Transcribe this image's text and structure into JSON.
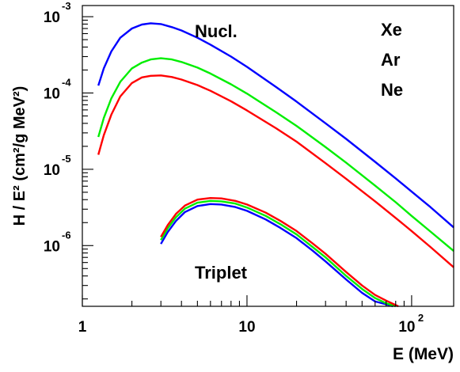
{
  "chart_data": {
    "type": "line",
    "xlabel": "E (MeV)",
    "ylabel": "H / E² (cm²/g MeV²)",
    "x_scale": "log",
    "y_scale": "log",
    "xlim": [
      1,
      180
    ],
    "ylim": [
      1.6e-07,
      0.0014
    ],
    "grid": false,
    "x_ticks": [
      {
        "value": 1,
        "base": "1",
        "exp": ""
      },
      {
        "value": 10,
        "base": "10",
        "exp": ""
      },
      {
        "value": 100,
        "base": "10",
        "exp": "2"
      }
    ],
    "y_ticks": [
      {
        "value": 0.001,
        "base": "10",
        "exp": "-3"
      },
      {
        "value": 0.0001,
        "base": "10",
        "exp": "-4"
      },
      {
        "value": 1e-05,
        "base": "10",
        "exp": "-5"
      },
      {
        "value": 1e-06,
        "base": "10",
        "exp": "-6"
      }
    ],
    "annotations": [
      {
        "text": "Nucl.",
        "near": "upper-center"
      },
      {
        "text": "Triplet",
        "near": "lower-center"
      }
    ],
    "legend": {
      "placement": "top-right",
      "entries": [
        {
          "label": "Xe",
          "color": "#0000ff"
        },
        {
          "label": "Ar",
          "color": "#00ee00"
        },
        {
          "label": "Ne",
          "color": "#ff0000"
        }
      ]
    },
    "series": [
      {
        "group": "Nucl.",
        "color": "#0000ff",
        "x": [
          1.25,
          1.35,
          1.5,
          1.7,
          2.0,
          2.3,
          2.6,
          3.0,
          3.5,
          4.0,
          5.0,
          6.0,
          8.0,
          10,
          15,
          20,
          30,
          40,
          60,
          80,
          100,
          130,
          180
        ],
        "y": [
          0.000125,
          0.00021,
          0.00035,
          0.00053,
          0.0007,
          0.00079,
          0.00082,
          0.0008,
          0.00073,
          0.00066,
          0.00053,
          0.00043,
          0.0003,
          0.00022,
          0.00012,
          7.7e-05,
          4e-05,
          2.5e-05,
          1.25e-05,
          7.6e-06,
          5.1e-06,
          3.2e-06,
          1.73e-06
        ]
      },
      {
        "group": "Nucl.",
        "color": "#00ee00",
        "x": [
          1.25,
          1.35,
          1.5,
          1.7,
          2.0,
          2.3,
          2.6,
          3.0,
          3.5,
          4.0,
          5.0,
          6.0,
          8.0,
          10,
          15,
          20,
          30,
          40,
          60,
          80,
          100,
          130,
          180
        ],
        "y": [
          2.65e-05,
          4.7e-05,
          8.5e-05,
          0.00014,
          0.00021,
          0.00025,
          0.000275,
          0.000285,
          0.000275,
          0.000255,
          0.000215,
          0.00018,
          0.00013,
          9.8e-05,
          5.6e-05,
          3.7e-05,
          1.95e-05,
          1.22e-05,
          6.1e-06,
          3.7e-06,
          2.45e-06,
          1.53e-06,
          8.5e-07
        ]
      },
      {
        "group": "Nucl.",
        "color": "#ff0000",
        "x": [
          1.25,
          1.35,
          1.5,
          1.7,
          2.0,
          2.3,
          2.6,
          3.0,
          3.5,
          4.0,
          5.0,
          6.0,
          8.0,
          10,
          15,
          20,
          30,
          40,
          60,
          80,
          100,
          130,
          180
        ],
        "y": [
          1.55e-05,
          2.8e-05,
          5.2e-05,
          9e-05,
          0.000135,
          0.00016,
          0.000168,
          0.00017,
          0.000162,
          0.00015,
          0.000127,
          0.000107,
          7.8e-05,
          5.9e-05,
          3.45e-05,
          2.3e-05,
          1.2e-05,
          7.5e-06,
          3.8e-06,
          2.3e-06,
          1.55e-06,
          9.6e-07,
          5.2e-07
        ]
      },
      {
        "group": "Triplet",
        "color": "#0000ff",
        "x": [
          3.0,
          3.3,
          3.7,
          4.2,
          5.0,
          6.0,
          7.0,
          8.5,
          10,
          13,
          16,
          20,
          25,
          30,
          40,
          50,
          60,
          70,
          77
        ],
        "y": [
          1.05e-06,
          1.5e-06,
          2.1e-06,
          2.75e-06,
          3.3e-06,
          3.5e-06,
          3.45e-06,
          3.2e-06,
          2.85e-06,
          2.2e-06,
          1.7e-06,
          1.25e-06,
          8.6e-07,
          6.2e-07,
          3.6e-07,
          2.4e-07,
          1.85e-07,
          1.7e-07,
          1.6e-07
        ]
      },
      {
        "group": "Triplet",
        "color": "#00ee00",
        "x": [
          3.0,
          3.3,
          3.7,
          4.2,
          5.0,
          6.0,
          7.0,
          8.5,
          10,
          13,
          16,
          20,
          25,
          30,
          40,
          50,
          60,
          70,
          80
        ],
        "y": [
          1.18e-06,
          1.68e-06,
          2.35e-06,
          3.05e-06,
          3.65e-06,
          3.85e-06,
          3.8e-06,
          3.55e-06,
          3.15e-06,
          2.45e-06,
          1.9e-06,
          1.4e-06,
          9.6e-07,
          7e-07,
          4e-07,
          2.7e-07,
          2.05e-07,
          1.75e-07,
          1.6e-07
        ]
      },
      {
        "group": "Triplet",
        "color": "#ff0000",
        "x": [
          3.0,
          3.3,
          3.7,
          4.2,
          5.0,
          6.0,
          7.0,
          8.5,
          10,
          13,
          16,
          20,
          25,
          30,
          40,
          50,
          60,
          70,
          83
        ],
        "y": [
          1.3e-06,
          1.85e-06,
          2.6e-06,
          3.35e-06,
          4e-06,
          4.2e-06,
          4.15e-06,
          3.85e-06,
          3.45e-06,
          2.7e-06,
          2.1e-06,
          1.55e-06,
          1.07e-06,
          7.8e-07,
          4.5e-07,
          3e-07,
          2.25e-07,
          1.9e-07,
          1.6e-07
        ]
      }
    ]
  }
}
